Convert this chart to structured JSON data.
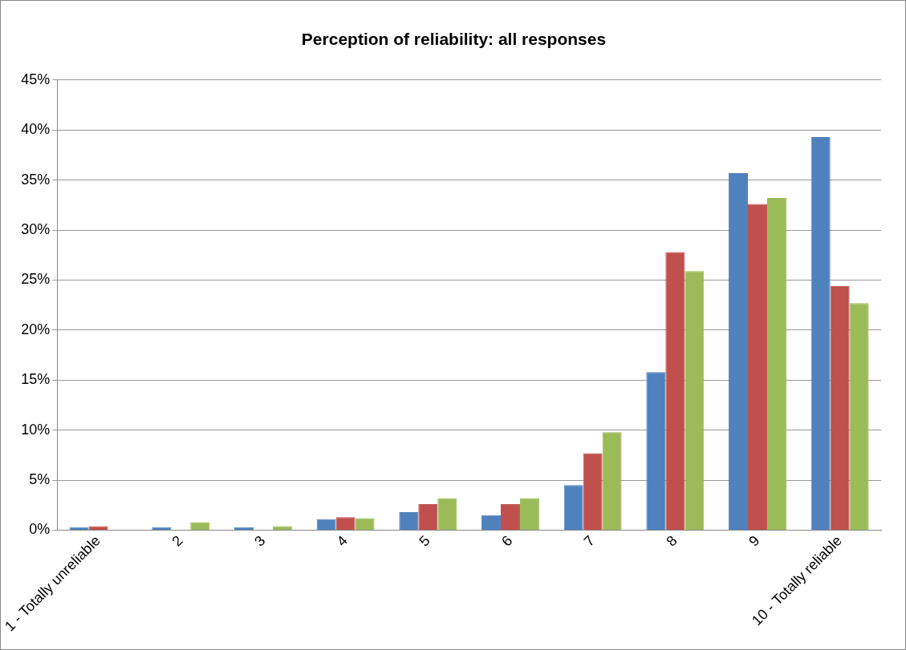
{
  "chart_data": {
    "type": "bar",
    "title": "Perception of reliability: all responses",
    "categories": [
      "1 - Totally unreliable",
      "2",
      "3",
      "4",
      "5",
      "6",
      "7",
      "8",
      "9",
      "10 - Totally reliable"
    ],
    "series": [
      {
        "color": "#4f81bd",
        "values": [
          0.3,
          0.3,
          0.3,
          1.1,
          1.8,
          1.5,
          4.5,
          15.8,
          35.7,
          39.3
        ]
      },
      {
        "color": "#c0504d",
        "values": [
          0.4,
          0,
          0,
          1.3,
          2.6,
          2.6,
          7.7,
          27.8,
          32.6,
          24.4
        ]
      },
      {
        "color": "#9bbb59",
        "values": [
          0,
          0.8,
          0.4,
          1.2,
          3.2,
          3.2,
          9.8,
          25.9,
          33.2,
          22.7
        ]
      }
    ],
    "ylim": [
      0,
      45
    ],
    "yticks": [
      {
        "value": 0,
        "label": "0%"
      },
      {
        "value": 5,
        "label": "5%"
      },
      {
        "value": 10,
        "label": "10%"
      },
      {
        "value": 15,
        "label": "15%"
      },
      {
        "value": 20,
        "label": "20%"
      },
      {
        "value": 25,
        "label": "25%"
      },
      {
        "value": 30,
        "label": "30%"
      },
      {
        "value": 35,
        "label": "35%"
      },
      {
        "value": 40,
        "label": "40%"
      },
      {
        "value": 45,
        "label": "45%"
      }
    ],
    "grid": "y"
  }
}
